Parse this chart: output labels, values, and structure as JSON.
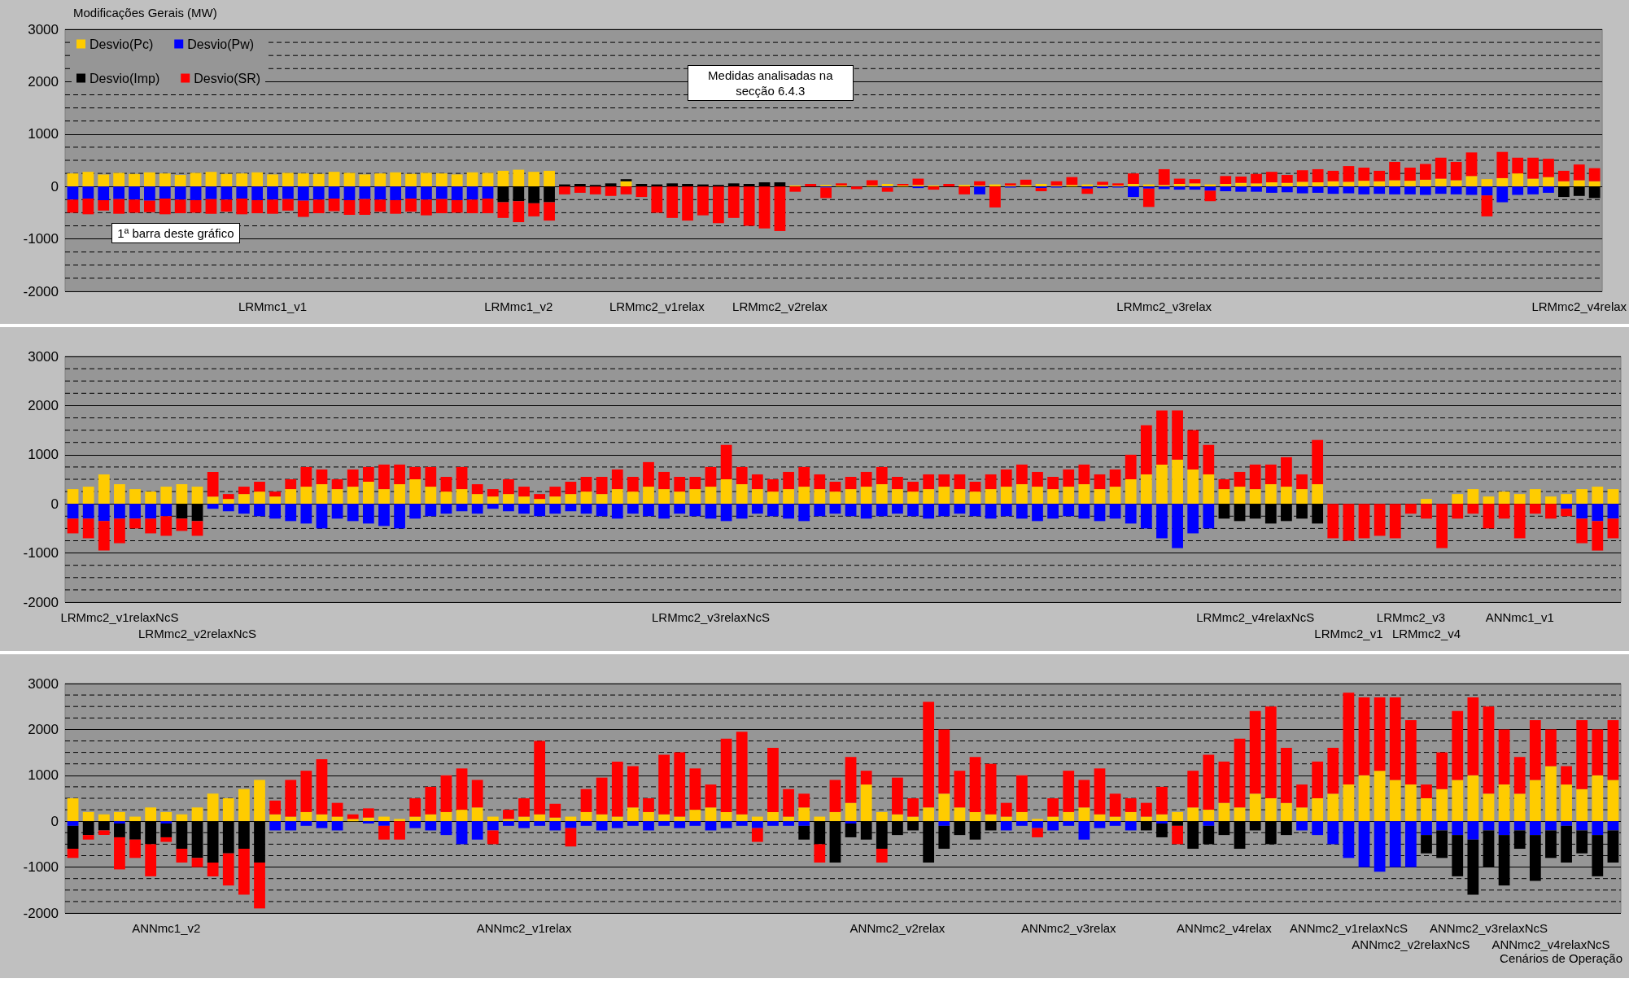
{
  "chart_data": [
    {
      "type": "bar",
      "stacked": true,
      "ylabel": "Modificações Gerais (MW)",
      "legend": "top left",
      "grid": "y",
      "ylim": [
        -2000,
        3000
      ],
      "yticks": [
        -2000,
        {
          "value": -1750,
          "label": null
        },
        {
          "value": -1500,
          "label": null
        },
        {
          "value": -1250,
          "label": null
        },
        -1000,
        {
          "value": -750,
          "label": null
        },
        {
          "value": -500,
          "label": null
        },
        {
          "value": -250,
          "label": null
        },
        0,
        {
          "value": 250,
          "label": null
        },
        {
          "value": 500,
          "label": null
        },
        {
          "value": 750,
          "label": null
        },
        1000,
        {
          "value": 1250,
          "label": null
        },
        {
          "value": 1500,
          "label": null
        },
        {
          "value": 1750,
          "label": null
        },
        2000,
        {
          "value": 2250,
          "label": null
        },
        {
          "value": 2500,
          "label": null
        },
        {
          "value": 2750,
          "label": null
        },
        3000
      ],
      "categories": [
        null,
        null,
        null,
        null,
        null,
        null,
        null,
        null,
        null,
        null,
        null,
        null,
        null,
        "LRMmc1_v1",
        null,
        null,
        null,
        null,
        null,
        null,
        null,
        null,
        null,
        null,
        null,
        null,
        null,
        null,
        null,
        "LRMmc1_v2",
        null,
        null,
        null,
        null,
        null,
        null,
        null,
        null,
        "LRMmc2_v1relax",
        null,
        null,
        null,
        null,
        null,
        null,
        null,
        "LRMmc2_v2relax",
        null,
        null,
        null,
        null,
        null,
        null,
        null,
        null,
        null,
        null,
        null,
        null,
        null,
        null,
        null,
        null,
        null,
        null,
        null,
        null,
        null,
        null,
        null,
        null,
        "LRMmc2_v3relax",
        null,
        null,
        null,
        null,
        null,
        null,
        null,
        null,
        null,
        null,
        null,
        null,
        null,
        null,
        null,
        null,
        null,
        null,
        null,
        null,
        null,
        null,
        null,
        null,
        null,
        null,
        "LRMmc2_v4relax",
        null
      ],
      "series": [
        {
          "name": "Desvio(Pc)",
          "color": "#ffcc00",
          "values": [
            250,
            280,
            230,
            260,
            240,
            270,
            250,
            220,
            260,
            280,
            240,
            250,
            270,
            230,
            260,
            250,
            240,
            280,
            260,
            230,
            250,
            270,
            240,
            260,
            250,
            230,
            270,
            260,
            300,
            320,
            280,
            300,
            0,
            0,
            0,
            0,
            100,
            0,
            0,
            0,
            0,
            0,
            0,
            0,
            0,
            0,
            0,
            20,
            0,
            30,
            20,
            0,
            20,
            50,
            20,
            30,
            20,
            0,
            30,
            20,
            40,
            20,
            30,
            50,
            20,
            30,
            40,
            30,
            20,
            50,
            40,
            30,
            50,
            60,
            40,
            50,
            70,
            60,
            80,
            70,
            90,
            80,
            100,
            90,
            110,
            100,
            120,
            110,
            130,
            150,
            120,
            200,
            140,
            160,
            250,
            150,
            180,
            100,
            120,
            100
          ]
        },
        {
          "name": "Desvio(Pw)",
          "color": "#0000ff",
          "values": [
            -250,
            -230,
            -260,
            -240,
            -250,
            -270,
            -230,
            -250,
            -260,
            -240,
            -250,
            -230,
            -260,
            -250,
            -240,
            -270,
            -250,
            -230,
            -260,
            -240,
            -250,
            -260,
            -230,
            -250,
            -240,
            -260,
            -250,
            -230,
            0,
            0,
            0,
            0,
            0,
            0,
            0,
            0,
            0,
            0,
            0,
            0,
            0,
            0,
            0,
            0,
            0,
            0,
            0,
            0,
            0,
            -20,
            0,
            0,
            0,
            -20,
            0,
            -30,
            0,
            null,
            0,
            -150,
            0,
            -20,
            0,
            -30,
            -20,
            0,
            -40,
            -30,
            -20,
            -200,
            -40,
            -50,
            -60,
            -60,
            -80,
            -90,
            -100,
            -100,
            -120,
            -110,
            -130,
            -120,
            -140,
            -130,
            -150,
            -140,
            -150,
            -150,
            -160,
            -140,
            -150,
            -160,
            -170,
            -300,
            -160,
            -150,
            -120,
            0,
            0,
            0
          ]
        },
        {
          "name": "Desvio(Imp)",
          "color": "#000000",
          "values": [
            0,
            0,
            0,
            0,
            0,
            0,
            0,
            0,
            0,
            0,
            0,
            0,
            0,
            0,
            0,
            0,
            0,
            0,
            0,
            0,
            0,
            0,
            0,
            0,
            0,
            0,
            0,
            0,
            -300,
            -280,
            -320,
            -300,
            40,
            50,
            30,
            60,
            40,
            50,
            40,
            60,
            50,
            40,
            30,
            60,
            50,
            80,
            80,
            0,
            0,
            0,
            0,
            0,
            0,
            0,
            0,
            0,
            0,
            0,
            0,
            0,
            0,
            0,
            0,
            0,
            0,
            0,
            0,
            0,
            0,
            0,
            0,
            0,
            0,
            0,
            0,
            0,
            0,
            0,
            0,
            0,
            0,
            0,
            0,
            0,
            0,
            0,
            0,
            0,
            0,
            0,
            0,
            0,
            0,
            0,
            0,
            0,
            0,
            -200,
            -180,
            -220
          ]
        },
        {
          "name": "Desvio(SR)",
          "color": "#ff0000",
          "values": [
            -250,
            -300,
            -200,
            -280,
            -250,
            -220,
            -300,
            -260,
            -240,
            -280,
            -230,
            -300,
            -250,
            -270,
            -220,
            -310,
            -260,
            -240,
            -280,
            -300,
            -230,
            -260,
            -250,
            -300,
            -270,
            -240,
            -260,
            -280,
            -300,
            -400,
            -250,
            -350,
            -150,
            -120,
            -150,
            -180,
            -150,
            -200,
            -500,
            -600,
            -650,
            -550,
            -700,
            -600,
            -750,
            -800,
            -850,
            -100,
            50,
            -200,
            40,
            -50,
            100,
            -80,
            30,
            120,
            -60,
            50,
            -150,
            80,
            -400,
            40,
            100,
            -60,
            80,
            150,
            -100,
            60,
            40,
            200,
            -350,
            300,
            100,
            80,
            -200,
            150,
            120,
            180,
            200,
            150,
            220,
            250,
            200,
            300,
            250,
            200,
            350,
            250,
            300,
            400,
            350,
            450,
            -400,
            500,
            300,
            400,
            350,
            200,
            300,
            250
          ]
        }
      ],
      "annotations": [
        "Medidas analisadas na secção 6.4.3",
        "1ª barra deste gráfico"
      ]
    },
    {
      "type": "bar",
      "stacked": true,
      "grid": "y",
      "ylim": [
        -2000,
        3000
      ],
      "yticks": [
        -2000,
        {
          "value": -1750,
          "label": null
        },
        {
          "value": -1500,
          "label": null
        },
        {
          "value": -1250,
          "label": null
        },
        -1000,
        {
          "value": -750,
          "label": null
        },
        {
          "value": -500,
          "label": null
        },
        {
          "value": -250,
          "label": null
        },
        0,
        {
          "value": 250,
          "label": null
        },
        {
          "value": 500,
          "label": null
        },
        {
          "value": 750,
          "label": null
        },
        1000,
        {
          "value": 1250,
          "label": null
        },
        {
          "value": 1500,
          "label": null
        },
        {
          "value": 1750,
          "label": null
        },
        2000,
        {
          "value": 2250,
          "label": null
        },
        {
          "value": 2500,
          "label": null
        },
        {
          "value": 2750,
          "label": null
        },
        3000
      ],
      "categories": [
        null,
        null,
        null,
        "LRMmc2_v1relaxNcS",
        null,
        null,
        null,
        null,
        "LRMmc2_v2relaxNcS",
        null,
        null,
        null,
        null,
        null,
        null,
        null,
        null,
        null,
        null,
        null,
        null,
        null,
        null,
        null,
        null,
        null,
        null,
        null,
        null,
        null,
        null,
        null,
        null,
        null,
        null,
        null,
        null,
        null,
        null,
        null,
        null,
        "LRMmc2_v3relaxNcS",
        null,
        null,
        null,
        null,
        null,
        null,
        null,
        null,
        null,
        null,
        null,
        null,
        null,
        null,
        null,
        null,
        null,
        null,
        null,
        null,
        null,
        null,
        null,
        null,
        null,
        null,
        null,
        null,
        null,
        null,
        null,
        null,
        null,
        null,
        "LRMmc2_v4relaxNcS",
        null,
        null,
        null,
        null,
        null,
        "LRMmc2_v1",
        null,
        null,
        null,
        "LRMmc2_v3",
        "LRMmc2_v4",
        null,
        null,
        null,
        null,
        null,
        "ANNmc1_v1",
        null,
        null,
        null,
        null,
        null,
        null
      ],
      "series": [
        {
          "color": "#ffcc00",
          "values": [
            300,
            350,
            600,
            400,
            300,
            250,
            350,
            400,
            350,
            150,
            100,
            200,
            250,
            150,
            300,
            350,
            400,
            300,
            350,
            450,
            300,
            400,
            500,
            350,
            250,
            300,
            200,
            150,
            200,
            150,
            100,
            150,
            200,
            250,
            200,
            300,
            250,
            350,
            300,
            250,
            300,
            350,
            500,
            400,
            300,
            250,
            300,
            350,
            300,
            250,
            300,
            350,
            400,
            300,
            250,
            300,
            350,
            300,
            250,
            300,
            350,
            400,
            350,
            300,
            350,
            400,
            300,
            350,
            500,
            600,
            800,
            900,
            700,
            600,
            300,
            350,
            300,
            400,
            350,
            300,
            400,
            0,
            0,
            0,
            0,
            0,
            0,
            100,
            0,
            200,
            300,
            150,
            250,
            200,
            300,
            150,
            200,
            300,
            350,
            300
          ]
        },
        {
          "color": "#0000ff",
          "values": [
            -300,
            -300,
            -350,
            -300,
            -300,
            -300,
            -250,
            0,
            0,
            -100,
            -150,
            -200,
            -250,
            -300,
            -350,
            -400,
            -500,
            -300,
            -350,
            -400,
            -450,
            -500,
            -300,
            -250,
            -200,
            -150,
            -200,
            -100,
            -150,
            -200,
            -250,
            -200,
            -150,
            -200,
            -250,
            -300,
            -200,
            -250,
            -300,
            -200,
            -250,
            -300,
            -350,
            -300,
            -200,
            -250,
            -300,
            -350,
            -250,
            -200,
            -250,
            -300,
            -250,
            -200,
            -250,
            -300,
            -250,
            -200,
            -250,
            -300,
            -250,
            -300,
            -350,
            -300,
            -250,
            -300,
            -350,
            -300,
            -400,
            -500,
            -700,
            -900,
            -600,
            -500,
            0,
            0,
            0,
            0,
            0,
            0,
            0,
            0,
            0,
            0,
            0,
            0,
            0,
            0,
            0,
            0,
            0,
            0,
            0,
            0,
            0,
            0,
            -100,
            -300,
            -350,
            -300
          ]
        },
        {
          "color": "#000000",
          "values": [
            0,
            0,
            0,
            0,
            0,
            0,
            0,
            -300,
            -350,
            0,
            0,
            0,
            0,
            0,
            0,
            0,
            0,
            0,
            0,
            0,
            0,
            0,
            0,
            0,
            0,
            0,
            0,
            0,
            0,
            0,
            0,
            0,
            0,
            0,
            0,
            0,
            0,
            0,
            0,
            0,
            0,
            0,
            0,
            0,
            0,
            0,
            0,
            0,
            0,
            0,
            0,
            0,
            0,
            0,
            0,
            0,
            0,
            0,
            0,
            0,
            0,
            0,
            0,
            0,
            0,
            0,
            0,
            0,
            0,
            0,
            0,
            0,
            0,
            0,
            -300,
            -350,
            -300,
            -400,
            -350,
            -300,
            -400,
            0,
            0,
            0,
            0,
            0,
            0,
            0,
            0,
            0,
            0,
            0,
            0,
            0,
            0,
            0,
            0,
            0,
            0,
            0
          ]
        },
        {
          "color": "#ff0000",
          "values": [
            -300,
            -400,
            -600,
            -500,
            -200,
            -300,
            -400,
            -250,
            -300,
            500,
            100,
            150,
            200,
            100,
            200,
            400,
            300,
            200,
            350,
            300,
            500,
            400,
            250,
            400,
            300,
            450,
            200,
            150,
            300,
            200,
            100,
            200,
            250,
            300,
            350,
            400,
            300,
            500,
            350,
            300,
            250,
            400,
            700,
            350,
            300,
            250,
            350,
            400,
            300,
            200,
            250,
            300,
            350,
            250,
            200,
            300,
            250,
            300,
            200,
            300,
            350,
            400,
            300,
            250,
            350,
            400,
            300,
            350,
            500,
            1000,
            1100,
            1000,
            800,
            600,
            200,
            300,
            500,
            400,
            600,
            300,
            900,
            -700,
            -750,
            -700,
            -650,
            -700,
            -200,
            -300,
            -900,
            -300,
            -200,
            -500,
            -300,
            -700,
            -200,
            -300,
            -150,
            -500,
            -600,
            -400
          ]
        }
      ],
      "legend": false
    },
    {
      "type": "bar",
      "stacked": true,
      "grid": "y",
      "xlabel": "Cenários de Operação",
      "ylim": [
        -2000,
        3000
      ],
      "yticks": [
        -2000,
        {
          "value": -1750,
          "label": null
        },
        {
          "value": -1500,
          "label": null
        },
        {
          "value": -1250,
          "label": null
        },
        -1000,
        {
          "value": -750,
          "label": null
        },
        {
          "value": -500,
          "label": null
        },
        {
          "value": -250,
          "label": null
        },
        0,
        {
          "value": 250,
          "label": null
        },
        {
          "value": 500,
          "label": null
        },
        {
          "value": 750,
          "label": null
        },
        1000,
        {
          "value": 1250,
          "label": null
        },
        {
          "value": 1500,
          "label": null
        },
        {
          "value": 1750,
          "label": null
        },
        2000,
        {
          "value": 2250,
          "label": null
        },
        {
          "value": 2500,
          "label": null
        },
        {
          "value": 2750,
          "label": null
        },
        3000
      ],
      "categories": [
        null,
        null,
        null,
        null,
        null,
        null,
        "ANNmc1_v2",
        null,
        null,
        null,
        null,
        null,
        null,
        null,
        null,
        null,
        null,
        null,
        null,
        null,
        null,
        null,
        null,
        null,
        null,
        null,
        null,
        null,
        null,
        "ANNmc2_v1relax",
        null,
        null,
        null,
        null,
        null,
        null,
        null,
        null,
        null,
        null,
        null,
        null,
        null,
        null,
        null,
        null,
        null,
        null,
        null,
        null,
        null,
        null,
        null,
        "ANNmc2_v2relax",
        null,
        null,
        null,
        null,
        null,
        null,
        null,
        null,
        null,
        null,
        "ANNmc2_v3relax",
        null,
        null,
        null,
        null,
        null,
        null,
        null,
        null,
        null,
        "ANNmc2_v4relax",
        null,
        null,
        null,
        null,
        null,
        null,
        null,
        "ANNmc2_v1relaxNcS",
        null,
        null,
        null,
        "ANNmc2_v2relaxNcS",
        null,
        null,
        null,
        null,
        "ANNmc2_v3relaxNcS",
        null,
        null,
        null,
        "ANNmc2_v4relaxNcS",
        null,
        null,
        null,
        null
      ],
      "series": [
        {
          "color": "#ffcc00",
          "values": [
            500,
            200,
            150,
            200,
            100,
            300,
            200,
            150,
            300,
            600,
            500,
            700,
            900,
            150,
            100,
            200,
            150,
            100,
            50,
            80,
            100,
            50,
            100,
            150,
            200,
            250,
            300,
            100,
            50,
            100,
            150,
            80,
            100,
            200,
            150,
            100,
            300,
            200,
            150,
            100,
            250,
            300,
            200,
            150,
            100,
            200,
            100,
            300,
            100,
            200,
            400,
            800,
            200,
            150,
            100,
            300,
            600,
            300,
            200,
            150,
            100,
            200,
            50,
            100,
            200,
            300,
            150,
            100,
            200,
            100,
            150,
            200,
            300,
            250,
            400,
            300,
            600,
            500,
            400,
            300,
            500,
            600,
            800,
            1000,
            1100,
            900,
            800,
            500,
            700,
            900,
            1000,
            600,
            800,
            600,
            900,
            1200,
            800,
            700,
            1000,
            900
          ]
        },
        {
          "color": "#0000ff",
          "values": [
            -100,
            0,
            0,
            -50,
            0,
            0,
            -50,
            0,
            0,
            0,
            0,
            0,
            0,
            -200,
            -200,
            -100,
            -150,
            -200,
            0,
            -50,
            -100,
            0,
            -150,
            -200,
            -300,
            -500,
            -400,
            -200,
            -100,
            -150,
            -100,
            -200,
            -150,
            -100,
            -200,
            -150,
            -100,
            -200,
            -100,
            -150,
            -100,
            -200,
            -150,
            -100,
            -150,
            -100,
            -100,
            -100,
            0,
            0,
            -50,
            0,
            0,
            0,
            0,
            0,
            -100,
            0,
            0,
            0,
            -200,
            -100,
            -150,
            -200,
            -100,
            -400,
            -150,
            -100,
            -200,
            0,
            -50,
            0,
            0,
            -100,
            0,
            0,
            0,
            0,
            0,
            -200,
            -300,
            -500,
            -800,
            -1000,
            -1100,
            -1000,
            -1000,
            -300,
            -200,
            -300,
            -400,
            -200,
            -300,
            -200,
            -300,
            -200,
            -100,
            -200,
            -300,
            -200
          ]
        },
        {
          "color": "#000000",
          "values": [
            -500,
            -300,
            -200,
            -300,
            -400,
            -500,
            -300,
            -600,
            -800,
            -900,
            -700,
            -600,
            -900,
            0,
            0,
            0,
            0,
            0,
            0,
            0,
            0,
            0,
            0,
            0,
            0,
            0,
            0,
            0,
            0,
            0,
            0,
            0,
            0,
            0,
            0,
            0,
            0,
            0,
            0,
            0,
            0,
            0,
            0,
            0,
            0,
            0,
            0,
            -300,
            -500,
            -900,
            -300,
            -400,
            -600,
            -300,
            -200,
            -900,
            -500,
            -300,
            -400,
            -200,
            0,
            0,
            0,
            0,
            0,
            0,
            0,
            0,
            0,
            -200,
            -300,
            -100,
            -600,
            -400,
            -300,
            -600,
            -200,
            -500,
            -300,
            0,
            0,
            0,
            0,
            0,
            0,
            0,
            0,
            -400,
            -600,
            -900,
            -1200,
            -800,
            -1100,
            -400,
            -1000,
            -600,
            -800,
            -500,
            -900,
            -700
          ]
        },
        {
          "color": "#ff0000",
          "values": [
            -200,
            -100,
            -100,
            -700,
            -400,
            -700,
            -100,
            -300,
            -200,
            -300,
            -700,
            -1000,
            -1000,
            300,
            800,
            900,
            1200,
            300,
            100,
            200,
            -300,
            -400,
            400,
            600,
            800,
            900,
            600,
            -300,
            200,
            400,
            1600,
            300,
            -400,
            500,
            800,
            1200,
            900,
            300,
            1300,
            1400,
            900,
            500,
            1600,
            1800,
            -300,
            1400,
            600,
            300,
            -400,
            700,
            1000,
            300,
            -300,
            800,
            400,
            2300,
            1400,
            800,
            1200,
            1100,
            300,
            800,
            -200,
            400,
            900,
            600,
            1000,
            500,
            300,
            300,
            600,
            -400,
            800,
            1200,
            900,
            1500,
            1800,
            2000,
            1200,
            500,
            800,
            1000,
            2000,
            1700,
            1600,
            1800,
            1400,
            300,
            800,
            1500,
            1700,
            1900,
            1200,
            800,
            1300,
            800,
            400,
            1500,
            1000,
            1300
          ]
        }
      ],
      "legend": false
    }
  ]
}
